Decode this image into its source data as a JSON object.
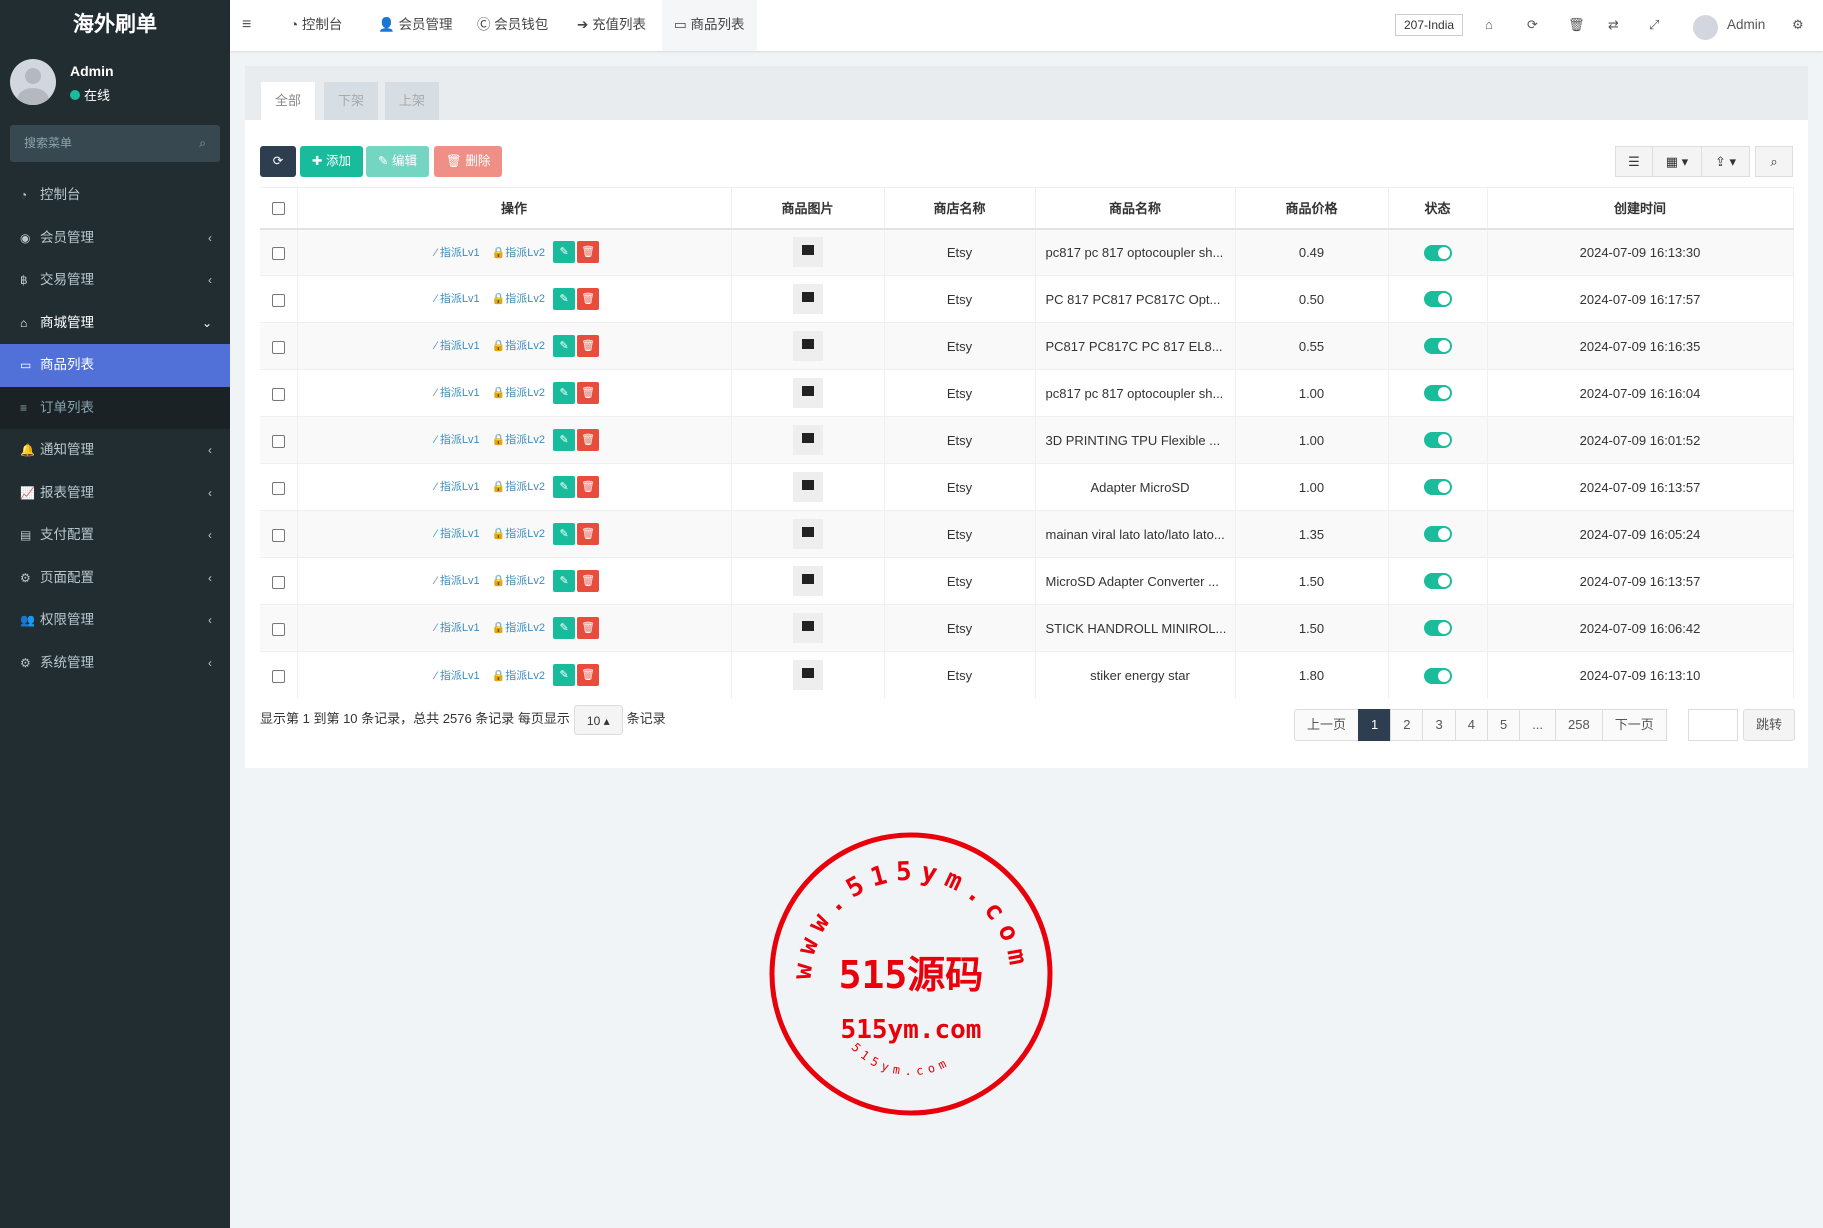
{
  "app_title": "海外刷单",
  "user": {
    "name": "Admin",
    "status": "在线"
  },
  "sidebar": {
    "search_placeholder": "搜索菜单",
    "items": [
      {
        "label": "控制台",
        "icon": "dashboard-icon",
        "arrow": ""
      },
      {
        "label": "会员管理",
        "icon": "user-circle-icon",
        "arrow": "‹"
      },
      {
        "label": "交易管理",
        "icon": "bitcoin-icon",
        "arrow": "‹"
      },
      {
        "label": "商城管理",
        "icon": "home-icon",
        "arrow": "⌄",
        "state": "open"
      },
      {
        "label": "商品列表",
        "icon": "desktop-icon",
        "arrow": "",
        "state": "active"
      },
      {
        "label": "订单列表",
        "icon": "list-icon",
        "arrow": "",
        "state": "sub"
      },
      {
        "label": "通知管理",
        "icon": "bell-icon",
        "arrow": "‹"
      },
      {
        "label": "报表管理",
        "icon": "line-chart-icon",
        "arrow": "‹"
      },
      {
        "label": "支付配置",
        "icon": "credit-card-icon",
        "arrow": "‹"
      },
      {
        "label": "页面配置",
        "icon": "cog-icon",
        "arrow": "‹"
      },
      {
        "label": "权限管理",
        "icon": "users-icon",
        "arrow": "‹"
      },
      {
        "label": "系统管理",
        "icon": "cogs-icon",
        "arrow": "‹"
      }
    ]
  },
  "header": {
    "tabs": [
      {
        "label": "控制台",
        "icon": "dashboard-icon"
      },
      {
        "label": "会员管理",
        "icon": "user-icon"
      },
      {
        "label": "会员钱包",
        "icon": "cc-icon"
      },
      {
        "label": "充值列表",
        "icon": "sign-in-icon"
      },
      {
        "label": "商品列表",
        "icon": "desktop-icon",
        "active": true
      }
    ],
    "region": "207-India",
    "user": "Admin"
  },
  "subtabs": [
    "全部",
    "下架",
    "上架"
  ],
  "toolbar": {
    "add": "添加",
    "edit": "编辑",
    "delete": "删除"
  },
  "table": {
    "columns": [
      "操作",
      "商品图片",
      "商店名称",
      "商品名称",
      "商品价格",
      "状态",
      "创建时间"
    ],
    "action_labels": {
      "lv1": "指派Lv1",
      "lv2": "指派Lv2"
    },
    "rows": [
      {
        "shop": "Etsy",
        "name": "pc817 pc 817 optocoupler sh...",
        "price": "0.49",
        "status": true,
        "time": "2024-07-09 16:13:30"
      },
      {
        "shop": "Etsy",
        "name": "PC 817 PC817 PC817C Opt...",
        "price": "0.50",
        "status": true,
        "time": "2024-07-09 16:17:57"
      },
      {
        "shop": "Etsy",
        "name": "PC817 PC817C PC 817 EL8...",
        "price": "0.55",
        "status": true,
        "time": "2024-07-09 16:16:35"
      },
      {
        "shop": "Etsy",
        "name": "pc817 pc 817 optocoupler sh...",
        "price": "1.00",
        "status": true,
        "time": "2024-07-09 16:16:04"
      },
      {
        "shop": "Etsy",
        "name": "3D PRINTING TPU Flexible ...",
        "price": "1.00",
        "status": true,
        "time": "2024-07-09 16:01:52"
      },
      {
        "shop": "Etsy",
        "name": "Adapter MicroSD",
        "price": "1.00",
        "status": true,
        "time": "2024-07-09 16:13:57"
      },
      {
        "shop": "Etsy",
        "name": "mainan viral lato lato/lato lato...",
        "price": "1.35",
        "status": true,
        "time": "2024-07-09 16:05:24"
      },
      {
        "shop": "Etsy",
        "name": "MicroSD Adapter Converter ...",
        "price": "1.50",
        "status": true,
        "time": "2024-07-09 16:13:57"
      },
      {
        "shop": "Etsy",
        "name": "STICK HANDROLL MINIROL...",
        "price": "1.50",
        "status": true,
        "time": "2024-07-09 16:06:42"
      },
      {
        "shop": "Etsy",
        "name": "stiker energy star",
        "price": "1.80",
        "status": true,
        "time": "2024-07-09 16:13:10"
      }
    ]
  },
  "footer": {
    "info": "显示第 1 到第 10 条记录，总共 2576 条记录 每页显示",
    "page_size": "10 ▴",
    "suffix": "条记录",
    "pages": [
      "上一页",
      "1",
      "2",
      "3",
      "4",
      "5",
      "...",
      "258",
      "下一页"
    ],
    "current_page": "1",
    "jump": "跳转"
  },
  "watermark": {
    "ring": "www.515ym.com",
    "center": "515源码",
    "sub": "515ym.com",
    "small": "515ym.com"
  },
  "colors": {
    "sidebar": "#222d32",
    "active": "#5171d8",
    "primary": "#18bc9c",
    "danger": "#e74c3c",
    "dark": "#2c3e50"
  }
}
